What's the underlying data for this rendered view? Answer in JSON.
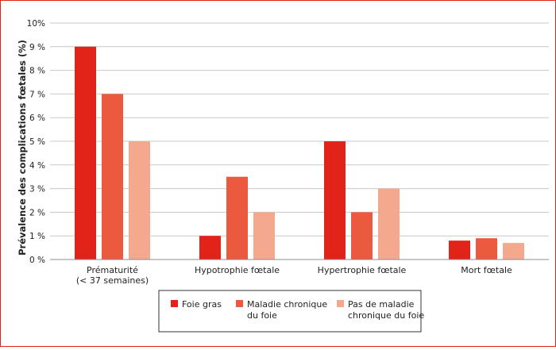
{
  "chart_data": {
    "type": "bar",
    "title": "",
    "xlabel": "",
    "ylabel": "Prévalence des complications fœtales (%)",
    "ylim": [
      0,
      10
    ],
    "yticks": [
      "0 %",
      "1 %",
      "2 %",
      "3 %",
      "4 %",
      "5 %",
      "6 %",
      "7 %",
      "8 %",
      "9 %",
      "10%"
    ],
    "grid": true,
    "legend_position": "bottom",
    "categories": [
      [
        "Prématurité",
        "(< 37 semaines)"
      ],
      [
        "Hypotrophie fœtale"
      ],
      [
        "Hypertrophie fœtale"
      ],
      [
        "Mort fœtale"
      ]
    ],
    "series": [
      {
        "name": "Foie gras",
        "legend_lines": [
          "Foie gras"
        ],
        "color": "#e2231a",
        "values": [
          9,
          1,
          5,
          0.8
        ]
      },
      {
        "name": "Maladie chronique du foie",
        "legend_lines": [
          "Maladie chronique",
          "du foie"
        ],
        "color": "#eb5a3f",
        "values": [
          7,
          3.5,
          2,
          0.9
        ]
      },
      {
        "name": "Pas de maladie chronique du foie",
        "legend_lines": [
          "Pas de maladie",
          "chronique du foie"
        ],
        "color": "#f4a98e",
        "values": [
          5,
          2,
          3,
          0.7
        ]
      }
    ]
  }
}
